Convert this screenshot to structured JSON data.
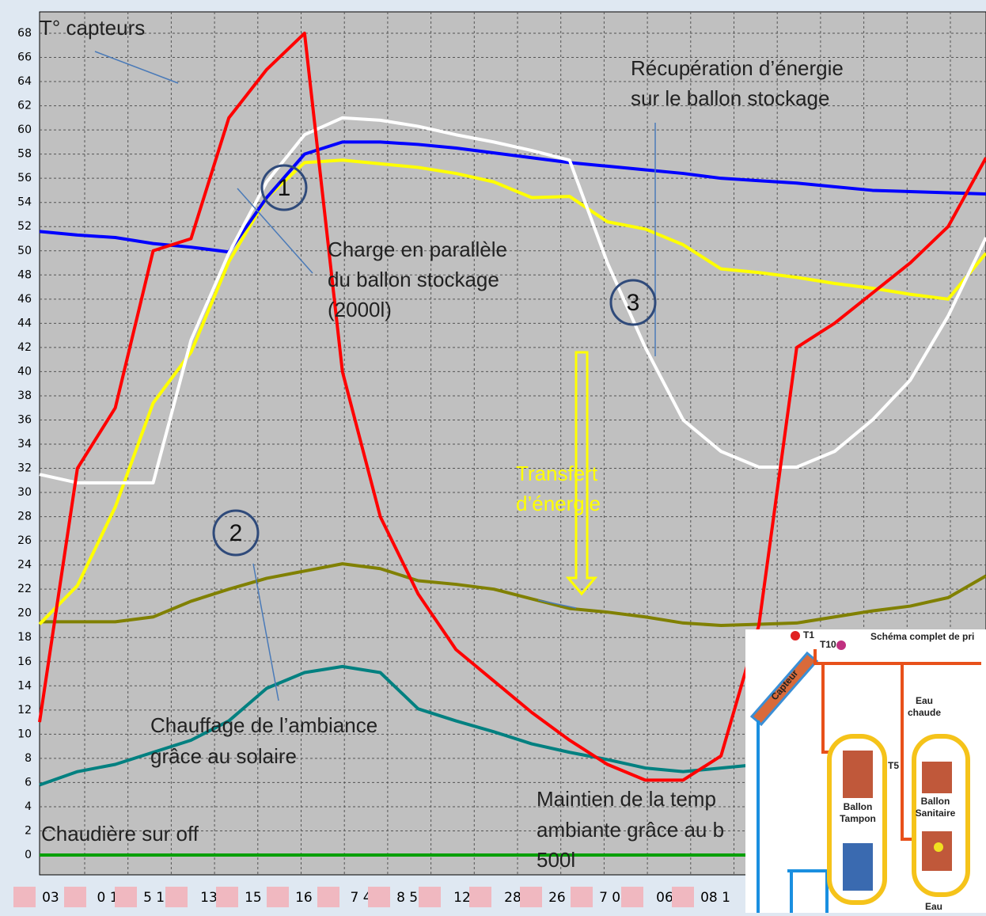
{
  "chart_data": {
    "type": "line",
    "x": [
      0,
      4,
      8,
      12,
      16,
      20,
      24,
      28,
      32,
      36,
      40,
      44,
      48,
      52,
      56,
      60,
      64,
      68,
      72,
      76,
      80,
      84,
      88,
      92,
      96,
      100
    ],
    "xlim": [
      0,
      100
    ],
    "ylim": [
      0,
      68
    ],
    "yticks": [
      0,
      2,
      4,
      6,
      8,
      10,
      12,
      14,
      16,
      18,
      20,
      22,
      24,
      26,
      28,
      30,
      32,
      34,
      36,
      38,
      40,
      42,
      44,
      46,
      48,
      50,
      52,
      54,
      56,
      58,
      60,
      62,
      64,
      66,
      68
    ],
    "grid": true,
    "x_labels": [
      "03 1",
      "0 1",
      "5 12",
      "13",
      "15 1",
      "16 2",
      "7 4",
      "8 57",
      "12",
      "28",
      "26 0",
      "7 04",
      "06",
      "08 1"
    ],
    "series": [
      {
        "color": "#00a000",
        "values": [
          0,
          0,
          0,
          0,
          0,
          0,
          0,
          0,
          0,
          0,
          0,
          0,
          0,
          0,
          0,
          0,
          0,
          0,
          0,
          0,
          0,
          0,
          0,
          0,
          0,
          0
        ]
      },
      {
        "color": "#008080",
        "values": [
          5.8,
          6.9,
          7.5,
          8.5,
          9.5,
          11.1,
          13.8,
          15.1,
          15.6,
          15.1,
          12.1,
          11.1,
          10.2,
          9.2,
          8.5,
          7.9,
          7.2,
          6.9,
          7.2,
          7.5,
          null,
          null,
          null,
          null,
          null,
          null
        ]
      },
      {
        "color": "#808000",
        "values": [
          19.3,
          19.3,
          19.3,
          19.7,
          21,
          22,
          22.9,
          23.5,
          24.1,
          23.7,
          22.7,
          22.4,
          22,
          21.2,
          20.4,
          20.1,
          19.7,
          19.2,
          19,
          19.1,
          19.2,
          19.7,
          20.2,
          20.6,
          21.3,
          23.1
        ]
      },
      {
        "color": "#ffff00",
        "values": [
          19.1,
          22.3,
          28.8,
          37.4,
          41.6,
          49.1,
          54.4,
          57.3,
          57.5,
          57.2,
          56.9,
          56.4,
          55.7,
          54.4,
          54.5,
          52.4,
          51.8,
          50.5,
          48.5,
          48.2,
          47.8,
          47.3,
          46.9,
          46.4,
          46,
          49.8
        ]
      },
      {
        "color": "#0000ff",
        "values": [
          51.6,
          51.3,
          51.1,
          50.6,
          50.3,
          49.9,
          54.4,
          58,
          59,
          59,
          58.8,
          58.5,
          58.1,
          57.7,
          57.3,
          57,
          56.7,
          56.4,
          56,
          55.8,
          55.6,
          55.3,
          55,
          54.9,
          54.8,
          54.7
        ]
      },
      {
        "color": "#ffffff",
        "values": [
          31.5,
          30.8,
          30.8,
          30.8,
          42.6,
          49.8,
          55.7,
          59.6,
          61,
          60.8,
          60.3,
          59.6,
          59,
          58.3,
          57.5,
          49,
          42,
          36,
          33.4,
          32.1,
          32.1,
          33.4,
          36,
          39.3,
          44.6,
          51.1
        ]
      },
      {
        "color": "#ff0000",
        "values": [
          11,
          32,
          37,
          50,
          51,
          61,
          65,
          68,
          40,
          28,
          21.6,
          17,
          14.4,
          11.8,
          9.5,
          7.5,
          6.2,
          6.2,
          8.2,
          19,
          42,
          44,
          46.5,
          49,
          52,
          57.7
        ]
      }
    ],
    "annotations": {
      "collectors": "T° capteurs",
      "recovery": [
        "Récupération d’énergie",
        "sur le ballon stockage"
      ],
      "charge": [
        "Charge en parallèle",
        "du ballon stockage",
        "(2000l)"
      ],
      "transfer": [
        "Transfert",
        "d’énergie"
      ],
      "heating": [
        "Chauffage de l’ambiance",
        "grâce au solaire"
      ],
      "maintain": [
        "Maintien de la temp",
        "ambiante grâce au b",
        "500l"
      ],
      "boiler": "Chaudière sur off",
      "markers": [
        "1",
        "2",
        "3"
      ]
    }
  },
  "inset": {
    "title": "Schéma complet de pri",
    "t1": "T1",
    "t10": "T10",
    "collector": "Capteur",
    "hot": [
      "Eau",
      "chaude"
    ],
    "t5": "T5",
    "buffer": [
      "Ballon",
      "Tampon"
    ],
    "sanitary": [
      "Ballon",
      "Sanitaire"
    ],
    "water": "Eau"
  }
}
